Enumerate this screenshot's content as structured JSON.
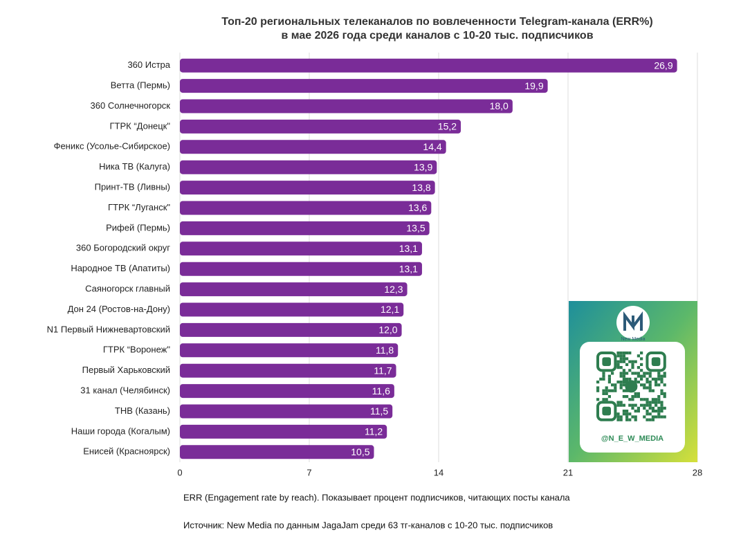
{
  "chart_data": {
    "type": "barh",
    "title": "Топ-20 региональных телеканалов по вовлеченности Telegram-канала (ERR%)",
    "subtitle": "в мае 2026 года среди каналов с 10-20 тыс. подписчиков",
    "categories": [
      "360 Истра",
      "Ветта (Пермь)",
      "360 Солнечногорск",
      "ГТРК “Донецк\"",
      "Феникс (Усолье-Сибирское)",
      "Ника ТВ (Калуга)",
      "Принт-ТВ (Ливны)",
      "ГТРК “Луганск\"",
      "Рифей (Пермь)",
      "360 Богородский округ",
      "Народное ТВ (Апатиты)",
      "Саяногорск главный",
      "Дон 24 (Ростов-на-Дону)",
      "N1 Первый Нижневартовский",
      "ГТРК “Воронеж\"",
      "Первый Харьковский",
      "31 канал (Челябинск)",
      "ТНВ (Казань)",
      "Наши города (Когалым)",
      "Енисей (Красноярск)"
    ],
    "values": [
      26.9,
      19.9,
      18.0,
      15.2,
      14.4,
      13.9,
      13.8,
      13.6,
      13.5,
      13.1,
      13.1,
      12.3,
      12.1,
      12.0,
      11.8,
      11.7,
      11.6,
      11.5,
      11.2,
      10.5
    ],
    "value_labels": [
      "26,9",
      "19,9",
      "18,0",
      "15,2",
      "14,4",
      "13,9",
      "13,8",
      "13,6",
      "13,5",
      "13,1",
      "13,1",
      "12,3",
      "12,1",
      "12,0",
      "11,8",
      "11,7",
      "11,6",
      "11,5",
      "11,2",
      "10,5"
    ],
    "color": "#7a2c98",
    "xlim": [
      0,
      28
    ],
    "xticks": [
      0,
      7,
      14,
      21,
      28
    ],
    "grid": true,
    "note": "ERR (Engagement rate by reach). Показывает процент подписчиков, читающих посты канала",
    "source": "Источник: New Media по данным JagaJam среди 63 тг-каналов с 10-20 тыс. подписчиков"
  },
  "qr": {
    "logo_text": "New Media",
    "handle": "@N_E_W_MEDIA"
  }
}
